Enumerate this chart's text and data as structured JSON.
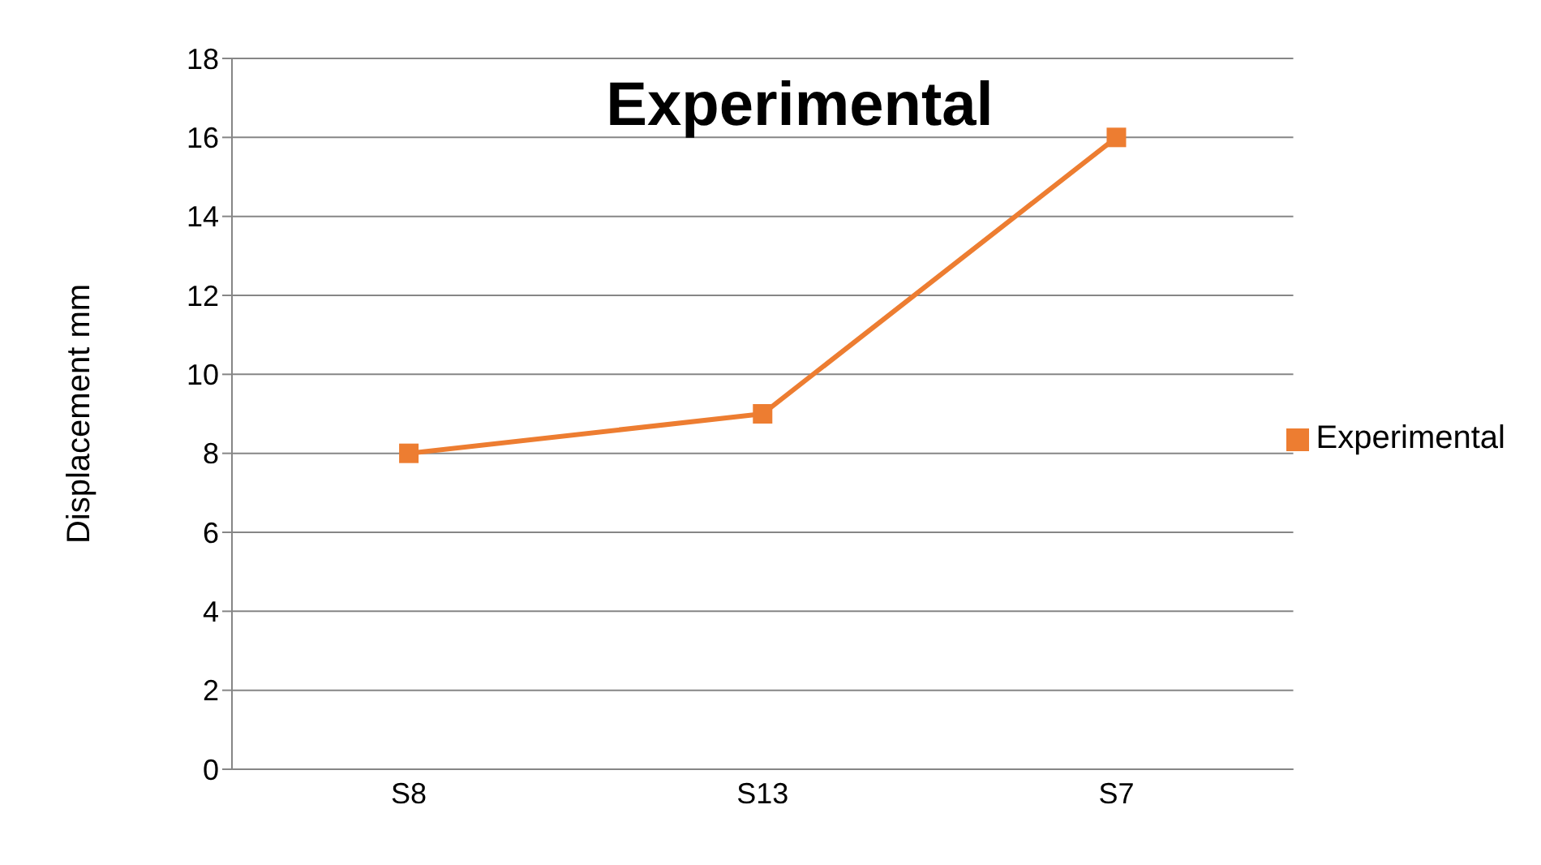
{
  "chart_data": {
    "type": "line",
    "title": "Experimental",
    "ylabel": "Displacement mm",
    "categories": [
      "S8",
      "S13",
      "S7"
    ],
    "series": [
      {
        "name": "Experimental",
        "color": "#ed7d31",
        "values": [
          8,
          9,
          16
        ]
      }
    ],
    "ylim": [
      0,
      18
    ],
    "yticks": [
      0,
      2,
      4,
      6,
      8,
      10,
      12,
      14,
      16,
      18
    ],
    "grid": "y",
    "legend": "right",
    "marker": "square",
    "line_style": "solid"
  }
}
